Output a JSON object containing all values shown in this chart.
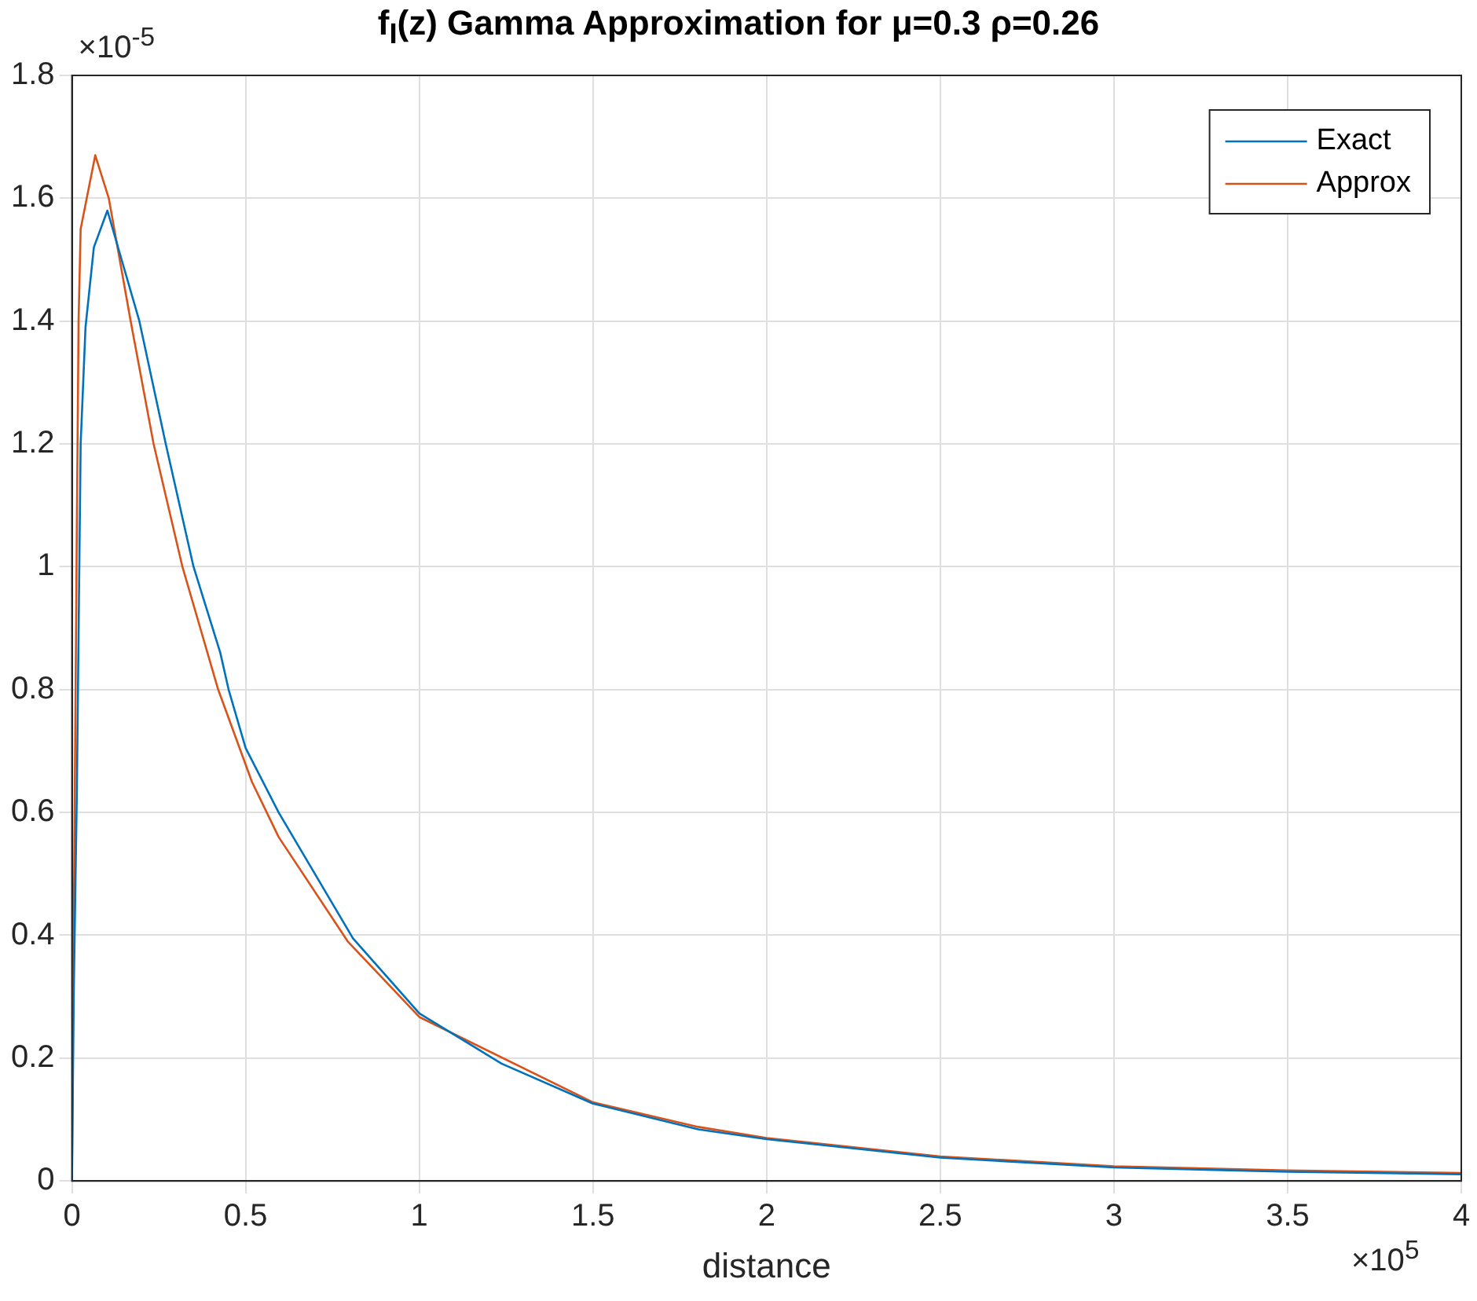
{
  "chart_data": {
    "type": "line",
    "title": "f$_{I}$(z) Gamma Approximation for μ=0.3 ρ=0.26",
    "xlabel": "distance",
    "annotations": [
      "×10$^{-5}$",
      "×10$^{5}$"
    ],
    "xlim": [
      0,
      4
    ],
    "xticks": [
      0,
      0.5,
      1,
      1.5,
      2,
      2.5,
      3,
      3.5,
      4
    ],
    "ylim": [
      0,
      1.8
    ],
    "yticks": [
      0,
      0.2,
      0.4,
      0.6,
      0.8,
      1,
      1.2,
      1.4,
      1.6,
      1.8
    ],
    "grid": true,
    "legend": "top right",
    "line_style": "solid",
    "marker": "none",
    "series": [
      {
        "name": "Exact",
        "color": "#0072bd",
        "x": [
          0,
          0.005,
          0.014,
          0.025,
          0.039,
          0.063,
          0.102,
          0.194,
          0.27,
          0.35,
          0.427,
          0.451,
          0.5,
          0.595,
          0.809,
          1.0,
          1.237,
          1.5,
          1.803,
          2.0,
          2.5,
          3.0,
          3.5,
          4.0
        ],
        "values": [
          0,
          0.3,
          0.63,
          1.2,
          1.39,
          1.52,
          1.58,
          1.4,
          1.2,
          1.0,
          0.86,
          0.8,
          0.705,
          0.6,
          0.395,
          0.273,
          0.191,
          0.126,
          0.084,
          0.068,
          0.038,
          0.022,
          0.015,
          0.011
        ]
      },
      {
        "name": "Approx",
        "color": "#d95319",
        "x": [
          0,
          0.005,
          0.014,
          0.019,
          0.025,
          0.067,
          0.106,
          0.169,
          0.235,
          0.318,
          0.421,
          0.518,
          0.595,
          0.794,
          1.0,
          1.5,
          1.803,
          2.0,
          2.5,
          3.0,
          3.5,
          4.0
        ],
        "values": [
          0,
          0.4,
          1.06,
          1.4,
          1.55,
          1.67,
          1.6,
          1.4,
          1.2,
          1.0,
          0.8,
          0.65,
          0.56,
          0.39,
          0.267,
          0.128,
          0.088,
          0.07,
          0.04,
          0.024,
          0.017,
          0.013
        ]
      }
    ]
  }
}
